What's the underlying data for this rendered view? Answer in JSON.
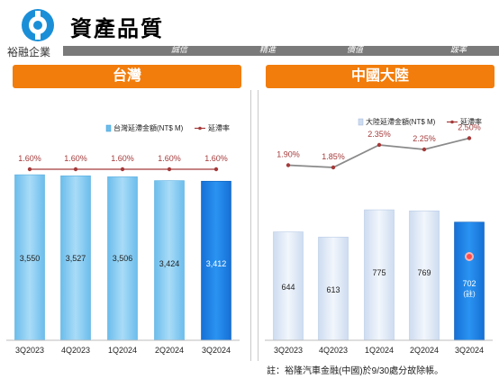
{
  "header": {
    "title": "資產品質",
    "company": "裕融企業",
    "motto": [
      "誠信",
      "精進",
      "價值",
      "跋率"
    ]
  },
  "chart_data": [
    {
      "type": "bar",
      "title": "台灣",
      "categories": [
        "3Q2023",
        "4Q2023",
        "1Q2024",
        "2Q2024",
        "3Q2024"
      ],
      "series": [
        {
          "name": "台灣延滯金額(NT$ M)",
          "type": "bar",
          "values": [
            3550,
            3527,
            3506,
            3424,
            3412
          ],
          "labels": [
            "3,550",
            "3,527",
            "3,506",
            "3,424",
            "3,412"
          ]
        },
        {
          "name": "延滯率",
          "type": "line",
          "values": [
            1.6,
            1.6,
            1.6,
            1.6,
            1.6
          ],
          "labels": [
            "1.60%",
            "1.60%",
            "1.60%",
            "1.60%",
            "1.60%"
          ]
        }
      ],
      "legend": "top-right",
      "colors": {
        "bar": "#7fc7f0",
        "bar_highlight": "#1a7fe6",
        "line": "#a53a3a"
      }
    },
    {
      "type": "bar",
      "title": "中國大陸",
      "categories": [
        "3Q2023",
        "4Q2023",
        "1Q2024",
        "2Q2024",
        "3Q2024"
      ],
      "series": [
        {
          "name": "大陸延滯金額(NT$ M)",
          "type": "bar",
          "values": [
            644,
            613,
            775,
            769,
            702
          ],
          "labels": [
            "644",
            "613",
            "775",
            "769",
            "702"
          ]
        },
        {
          "name": "延滯率",
          "type": "line",
          "values": [
            1.9,
            1.85,
            2.35,
            2.25,
            2.5
          ],
          "labels": [
            "1.90%",
            "1.85%",
            "2.35%",
            "2.25%",
            "2.50%"
          ]
        }
      ],
      "annotation": "(註)",
      "legend": "top-right",
      "colors": {
        "bar": "#dfe9f6",
        "bar_highlight": "#1a7fe6",
        "line": "#8a8a8a",
        "dot": "#a53a3a"
      }
    }
  ],
  "footnote": "註：裕隆汽車金融(中國)於9/30處分故除帳。"
}
